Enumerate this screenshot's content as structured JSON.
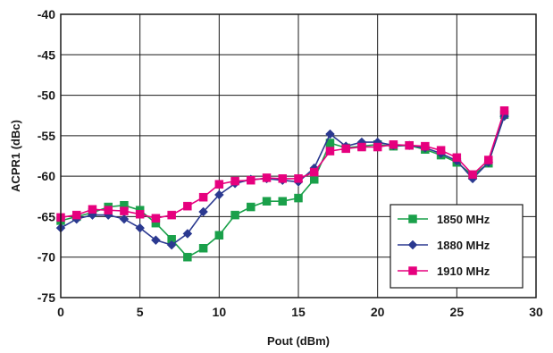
{
  "chart_data": {
    "type": "line",
    "title": "",
    "xlabel": "Pout (dBm)",
    "ylabel": "ACPR1 (dBc)",
    "xlim": [
      0,
      30
    ],
    "ylim": [
      -75,
      -40
    ],
    "xticks": [
      0,
      5,
      10,
      15,
      20,
      25,
      30
    ],
    "yticks": [
      -40,
      -45,
      -50,
      -55,
      -60,
      -65,
      -70,
      -75
    ],
    "grid": true,
    "legend_position": "bottom-right",
    "series": [
      {
        "name": "1850 MHz",
        "color": "#1aa04a",
        "marker": "square",
        "x": [
          0,
          1,
          2,
          3,
          4,
          5,
          6,
          7,
          8,
          9,
          10,
          11,
          12,
          13,
          14,
          15,
          16,
          17,
          18,
          19,
          20,
          21,
          22,
          23,
          24,
          25,
          26,
          27,
          28
        ],
        "y": [
          -65.5,
          -65.0,
          -64.5,
          -63.8,
          -63.6,
          -64.2,
          -65.8,
          -67.8,
          -70.0,
          -68.9,
          -67.3,
          -64.8,
          -63.8,
          -63.1,
          -63.1,
          -62.7,
          -60.4,
          -55.9,
          -56.5,
          -56.3,
          -56.1,
          -56.3,
          -56.2,
          -56.7,
          -57.4,
          -58.3,
          -59.9,
          -58.4,
          -52.4
        ]
      },
      {
        "name": "1880 MHz",
        "color": "#2b3990",
        "marker": "diamond",
        "x": [
          0,
          1,
          2,
          3,
          4,
          5,
          6,
          7,
          8,
          9,
          10,
          11,
          12,
          13,
          14,
          15,
          16,
          17,
          18,
          19,
          20,
          21,
          22,
          23,
          24,
          25,
          26,
          27,
          28
        ],
        "y": [
          -66.4,
          -65.3,
          -64.8,
          -64.8,
          -65.3,
          -66.4,
          -67.9,
          -68.5,
          -67.1,
          -64.4,
          -62.3,
          -60.9,
          -60.4,
          -60.3,
          -60.5,
          -60.7,
          -59.0,
          -54.8,
          -56.3,
          -55.8,
          -55.8,
          -56.2,
          -56.2,
          -56.5,
          -57.2,
          -58.1,
          -60.3,
          -58.3,
          -52.6
        ]
      },
      {
        "name": "1910 MHz",
        "color": "#e6007e",
        "marker": "square",
        "x": [
          0,
          1,
          2,
          3,
          4,
          5,
          6,
          7,
          8,
          9,
          10,
          11,
          12,
          13,
          14,
          15,
          16,
          17,
          18,
          19,
          20,
          21,
          22,
          23,
          24,
          25,
          26,
          27,
          28
        ],
        "y": [
          -65.1,
          -64.8,
          -64.1,
          -64.2,
          -64.3,
          -64.7,
          -65.2,
          -64.8,
          -63.7,
          -62.6,
          -61.0,
          -60.6,
          -60.5,
          -60.2,
          -60.3,
          -60.3,
          -59.5,
          -56.9,
          -56.6,
          -56.4,
          -56.4,
          -56.1,
          -56.2,
          -56.3,
          -56.8,
          -57.7,
          -59.8,
          -58.0,
          -51.9
        ]
      }
    ]
  }
}
